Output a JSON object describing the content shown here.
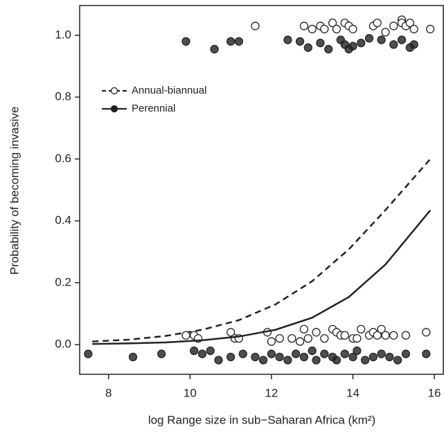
{
  "chart_data": {
    "type": "scatter",
    "xlabel": "log Range size in sub−Saharan Africa (km²)",
    "ylabel": "Probability of becoming invasive",
    "xlim": [
      7.29,
      16.22
    ],
    "ylim": [
      -0.096,
      1.096
    ],
    "xticks": [
      8,
      10,
      12,
      14,
      16
    ],
    "yticks": [
      {
        "value": 0,
        "label": "0.0"
      },
      0.2,
      0.4,
      0.6,
      {
        "value": 1,
        "label": "1.0"
      },
      0.8
    ],
    "legend": "upper left",
    "series": [
      {
        "name": "Annual-biannual",
        "marker": "open",
        "line": "dashed",
        "color": "#222222",
        "x": [
          11.6,
          12.8,
          13.0,
          13.2,
          13.3,
          13.5,
          13.6,
          13.8,
          13.9,
          14.0,
          14.5,
          14.6,
          14.8,
          15.0,
          15.2,
          15.2,
          15.3,
          15.4,
          15.5,
          15.9,
          9.9,
          10.1,
          10.2,
          11.0,
          11.1,
          11.2,
          11.9,
          12.0,
          12.2,
          12.5,
          12.7,
          12.8,
          12.9,
          13.1,
          13.3,
          13.5,
          13.6,
          13.7,
          13.8,
          14.0,
          14.1,
          14.2,
          14.4,
          14.5,
          14.6,
          14.7,
          14.8,
          15.0,
          15.3,
          15.8
        ],
        "values": [
          1.03,
          1.03,
          1.02,
          1.03,
          1.02,
          1.04,
          1.02,
          1.04,
          1.03,
          1.02,
          1.03,
          1.04,
          1.01,
          1.03,
          1.05,
          1.04,
          1.03,
          1.04,
          1.02,
          1.02,
          0.03,
          0.03,
          0.02,
          0.04,
          0.02,
          0.02,
          0.04,
          0.01,
          0.02,
          0.02,
          0.01,
          0.05,
          0.02,
          0.04,
          0.02,
          0.05,
          0.04,
          0.03,
          0.03,
          0.02,
          0.02,
          0.05,
          0.03,
          0.04,
          0.03,
          0.05,
          0.03,
          0.03,
          0.03,
          0.04
        ],
        "fit": {
          "x": [
            7.6,
            8.5,
            9.4,
            10.3,
            11.2,
            12.1,
            13.0,
            13.9,
            14.8,
            15.9
          ],
          "values": [
            0.01,
            0.016,
            0.028,
            0.048,
            0.079,
            0.13,
            0.205,
            0.308,
            0.435,
            0.6
          ]
        }
      },
      {
        "name": "Perennial",
        "marker": "filled",
        "line": "solid",
        "color": "#222222",
        "x": [
          9.9,
          10.6,
          11.0,
          11.2,
          12.4,
          12.7,
          12.9,
          13.2,
          13.4,
          13.7,
          13.8,
          13.9,
          14.0,
          14.2,
          14.4,
          14.7,
          15.0,
          15.2,
          15.4,
          15.5,
          7.5,
          8.6,
          9.3,
          10.1,
          10.3,
          10.5,
          10.7,
          11.0,
          11.3,
          11.6,
          11.8,
          12.0,
          12.2,
          12.4,
          12.6,
          12.8,
          13.0,
          13.1,
          13.3,
          13.5,
          13.6,
          13.8,
          14.0,
          14.1,
          14.3,
          14.5,
          14.7,
          14.9,
          15.1,
          15.3,
          15.8
        ],
        "values": [
          0.98,
          0.955,
          0.98,
          0.98,
          0.985,
          0.98,
          0.96,
          0.975,
          0.955,
          0.985,
          0.97,
          0.955,
          0.965,
          0.975,
          0.99,
          0.985,
          0.97,
          0.985,
          0.96,
          0.97,
          -0.03,
          -0.04,
          -0.03,
          -0.02,
          -0.03,
          -0.02,
          -0.05,
          -0.04,
          -0.03,
          -0.04,
          -0.05,
          -0.03,
          -0.04,
          -0.05,
          -0.03,
          -0.04,
          -0.02,
          -0.05,
          -0.03,
          -0.04,
          -0.05,
          -0.03,
          -0.04,
          -0.02,
          -0.05,
          -0.04,
          -0.03,
          -0.04,
          -0.05,
          -0.03,
          -0.03
        ],
        "fit": {
          "x": [
            7.6,
            8.5,
            9.4,
            10.3,
            11.2,
            12.1,
            13.0,
            13.9,
            14.8,
            15.9
          ],
          "values": [
            0.002,
            0.004,
            0.007,
            0.014,
            0.026,
            0.048,
            0.087,
            0.154,
            0.259,
            0.434
          ]
        }
      }
    ]
  }
}
